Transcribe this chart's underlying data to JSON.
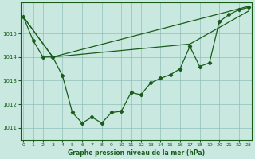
{
  "x_hours": [
    0,
    1,
    2,
    3,
    4,
    5,
    6,
    7,
    8,
    9,
    10,
    11,
    12,
    13,
    14,
    15,
    16,
    17,
    18,
    19,
    20,
    21,
    22,
    23
  ],
  "main_line": [
    1015.7,
    1014.7,
    1014.0,
    1014.0,
    1013.2,
    1011.65,
    1011.2,
    1011.45,
    1011.2,
    1011.65,
    1011.7,
    1012.5,
    1012.4,
    1012.9,
    1013.1,
    1013.25,
    1013.5,
    1014.45,
    1013.6,
    1013.75,
    1015.5,
    1015.8,
    1016.0,
    1016.1
  ],
  "upper_line_x": [
    0,
    3,
    23
  ],
  "upper_line_y": [
    1015.7,
    1014.0,
    1016.15
  ],
  "lower_line_x": [
    0,
    3,
    17,
    23
  ],
  "lower_line_y": [
    1015.7,
    1014.0,
    1014.55,
    1015.95
  ],
  "ylim": [
    1010.5,
    1016.3
  ],
  "xlim": [
    -0.3,
    23.3
  ],
  "yticks": [
    1011,
    1012,
    1013,
    1014,
    1015
  ],
  "xticks": [
    0,
    1,
    2,
    3,
    4,
    5,
    6,
    7,
    8,
    9,
    10,
    11,
    12,
    13,
    14,
    15,
    16,
    17,
    18,
    19,
    20,
    21,
    22,
    23
  ],
  "line_color": "#1a5c1a",
  "bg_color": "#c8e8e0",
  "grid_color": "#90bfb8",
  "xlabel": "Graphe pression niveau de la mer (hPa)"
}
